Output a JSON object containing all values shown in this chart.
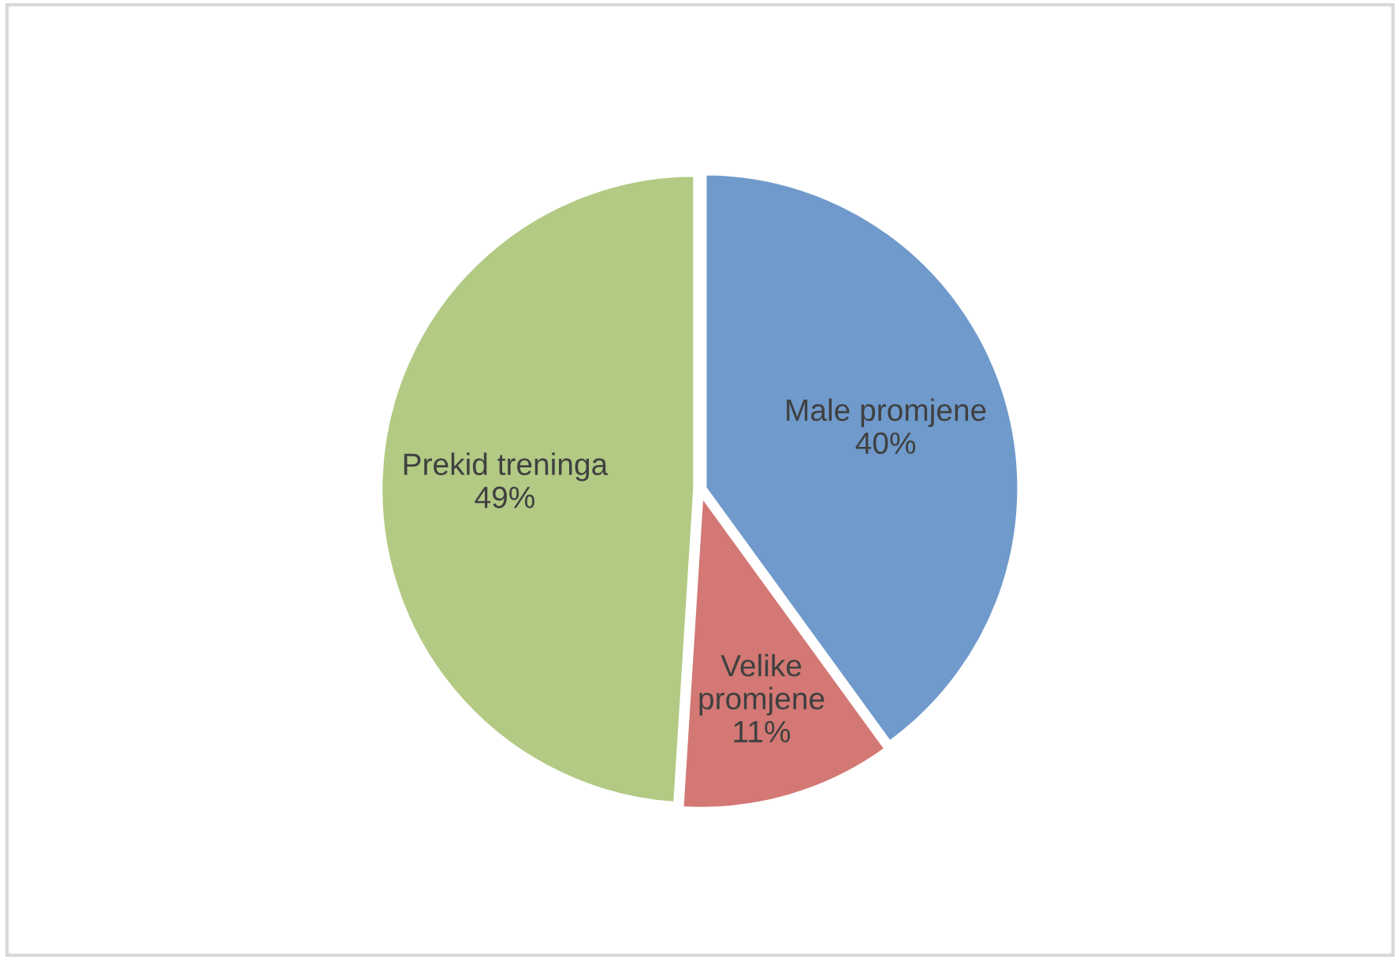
{
  "chart_data": {
    "type": "pie",
    "categories": [
      "Male promjene",
      "Velike promjene",
      "Prekid treninga"
    ],
    "values": [
      40,
      11,
      49
    ],
    "value_labels": [
      "40%",
      "11%",
      "49%"
    ],
    "colors": [
      "#6f9acb",
      "#d37874",
      "#b2ca84"
    ],
    "legend": false
  }
}
